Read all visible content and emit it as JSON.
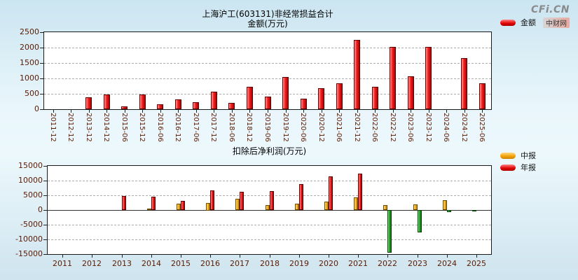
{
  "logo": {
    "brand": "CFi.CN",
    "site": "中财网"
  },
  "colors": {
    "background_top": "#cbe5f1",
    "background_mid": "#eaf6fb",
    "plot_background": "#ffffff",
    "axis_text": "#5c1a00",
    "bar_red": "#e60000",
    "bar_yellow": "#f5a623",
    "bar_negative_green": "#1f9c1f"
  },
  "chart_data": [
    {
      "type": "bar",
      "title": "上海沪工(603131)非经常损益合计",
      "subtitle": "金额(万元)",
      "legend": [
        {
          "label": "金额",
          "color": "#e60000"
        }
      ],
      "legend_position": "right-top",
      "grid": "dashed-horizontal",
      "ylim": [
        0,
        2500
      ],
      "yticks": [
        0,
        500,
        1000,
        1500,
        2000,
        2500
      ],
      "categories": [
        "2011-12",
        "2012-12",
        "2013-12",
        "2014-12",
        "2015-06",
        "2015-12",
        "2016-06",
        "2016-12",
        "2017-06",
        "2017-12",
        "2018-06",
        "2018-12",
        "2019-06",
        "2019-12",
        "2020-06",
        "2020-12",
        "2021-06",
        "2021-12",
        "2022-06",
        "2022-12",
        "2023-06",
        "2023-12",
        "2024-06",
        "2024-12",
        "2025-06"
      ],
      "values": [
        null,
        null,
        380,
        480,
        90,
        480,
        150,
        310,
        230,
        560,
        210,
        730,
        410,
        1050,
        340,
        690,
        830,
        2250,
        720,
        2030,
        1060,
        2020,
        null,
        1650,
        840
      ]
    },
    {
      "type": "bar",
      "title": "扣除后净利润(万元)",
      "legend": [
        {
          "label": "中报",
          "color": "#f5a623"
        },
        {
          "label": "年报",
          "color": "#e60000"
        }
      ],
      "legend_position": "right-top",
      "grid": "dashed-horizontal",
      "negative_color": "#1f9c1f",
      "ylim": [
        -15000,
        15000
      ],
      "yticks": [
        -15000,
        -10000,
        -5000,
        0,
        5000,
        10000,
        15000
      ],
      "categories": [
        "2011",
        "2012",
        "2013",
        "2014",
        "2015",
        "2016",
        "2017",
        "2018",
        "2019",
        "2020",
        "2021",
        "2022",
        "2023",
        "2024",
        "2025"
      ],
      "series": [
        {
          "key": "interim",
          "name": "中报",
          "color": "#f5a623",
          "values": [
            null,
            null,
            null,
            400,
            2200,
            2500,
            3700,
            1600,
            2200,
            2900,
            4200,
            1700,
            2000,
            3300,
            -400
          ]
        },
        {
          "key": "annual",
          "name": "年报",
          "color": "#e60000",
          "values": [
            null,
            null,
            4700,
            4600,
            3000,
            6700,
            6300,
            6500,
            8700,
            11500,
            12400,
            -14500,
            -7500,
            -800,
            null
          ]
        }
      ]
    }
  ]
}
